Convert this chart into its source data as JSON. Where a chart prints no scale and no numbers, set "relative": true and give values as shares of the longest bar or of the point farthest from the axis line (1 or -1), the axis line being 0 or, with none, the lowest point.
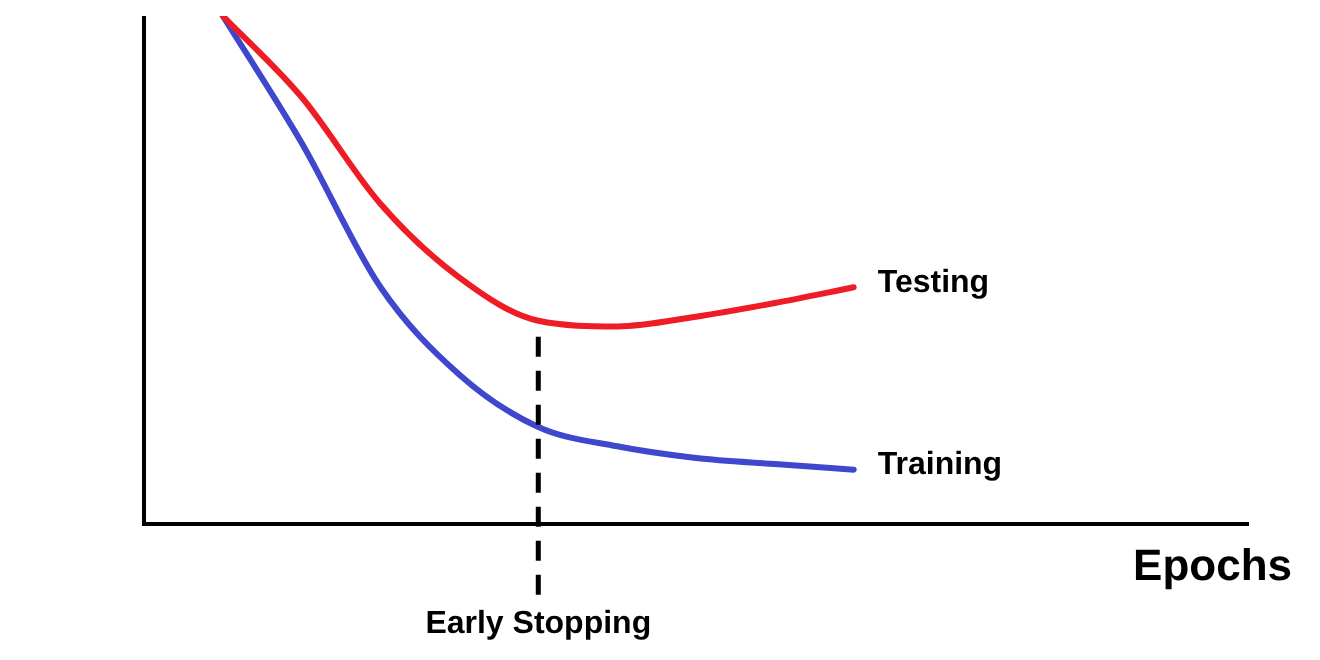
{
  "chart_data": {
    "type": "line",
    "relative": true,
    "xlabel": "Epochs",
    "legend": false,
    "grid": false,
    "marker": "none",
    "categories": [
      null,
      null,
      null,
      null,
      null,
      null,
      null,
      null,
      null,
      null,
      null,
      null,
      null,
      null,
      null
    ],
    "series": [
      {
        "name": "Testing",
        "color": "#ee1c25",
        "values": [
          null,
          1,
          0.84,
          0.63,
          0.485,
          0.4,
          0.389,
          0.408,
          0.435,
          0.466,
          null,
          null,
          null,
          null,
          null
        ]
      },
      {
        "name": "Training",
        "color": "#3f48cc",
        "values": [
          null,
          1,
          0.75,
          0.466,
          0.294,
          0.191,
          0.153,
          0.13,
          0.118,
          0.107,
          null,
          null,
          null,
          null,
          null
        ]
      }
    ],
    "annotations": [
      "Early Stopping"
    ]
  }
}
